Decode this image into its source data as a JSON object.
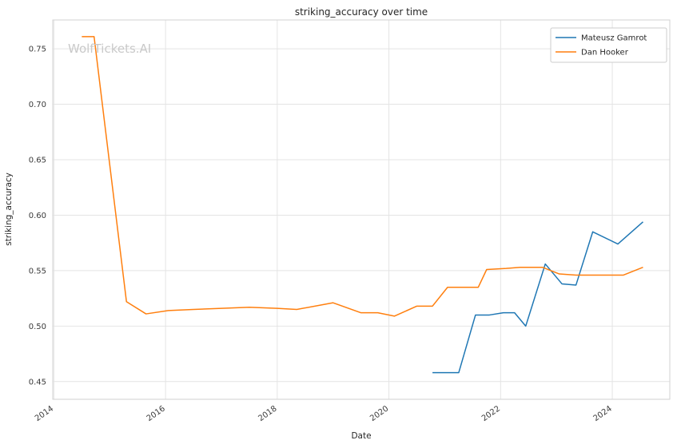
{
  "watermark": "WolfTickets.AI",
  "chart_data": {
    "type": "line",
    "title": "striking_accuracy over time",
    "xlabel": "Date",
    "ylabel": "striking_accuracy",
    "xlim": [
      2013.98,
      2025.03
    ],
    "ylim": [
      0.434,
      0.776
    ],
    "xticks": [
      2014,
      2016,
      2018,
      2020,
      2022,
      2024
    ],
    "yticks": [
      0.45,
      0.5,
      0.55,
      0.6,
      0.65,
      0.7,
      0.75
    ],
    "grid": true,
    "legend_position": "upper right",
    "series": [
      {
        "name": "Mateusz Gamrot",
        "color": "#1f77b4",
        "x": [
          2020.78,
          2021.25,
          2021.55,
          2021.8,
          2022.05,
          2022.25,
          2022.45,
          2022.8,
          2023.1,
          2023.35,
          2023.65,
          2024.1,
          2024.55
        ],
        "y": [
          0.458,
          0.458,
          0.51,
          0.51,
          0.512,
          0.512,
          0.5,
          0.556,
          0.538,
          0.537,
          0.585,
          0.574,
          0.594
        ]
      },
      {
        "name": "Dan Hooker",
        "color": "#ff7f0e",
        "x": [
          2014.5,
          2014.72,
          2015.3,
          2015.65,
          2016.05,
          2016.5,
          2017.0,
          2017.5,
          2018.0,
          2018.35,
          2019.0,
          2019.5,
          2019.8,
          2020.1,
          2020.5,
          2020.78,
          2021.05,
          2021.3,
          2021.6,
          2021.75,
          2022.1,
          2022.35,
          2022.75,
          2023.05,
          2023.35,
          2023.65,
          2023.95,
          2024.2,
          2024.55
        ],
        "y": [
          0.761,
          0.761,
          0.522,
          0.511,
          0.514,
          0.515,
          0.516,
          0.517,
          0.516,
          0.515,
          0.521,
          0.512,
          0.512,
          0.509,
          0.518,
          0.518,
          0.535,
          0.535,
          0.535,
          0.551,
          0.552,
          0.553,
          0.553,
          0.547,
          0.546,
          0.546,
          0.546,
          0.546,
          0.553
        ]
      }
    ]
  }
}
